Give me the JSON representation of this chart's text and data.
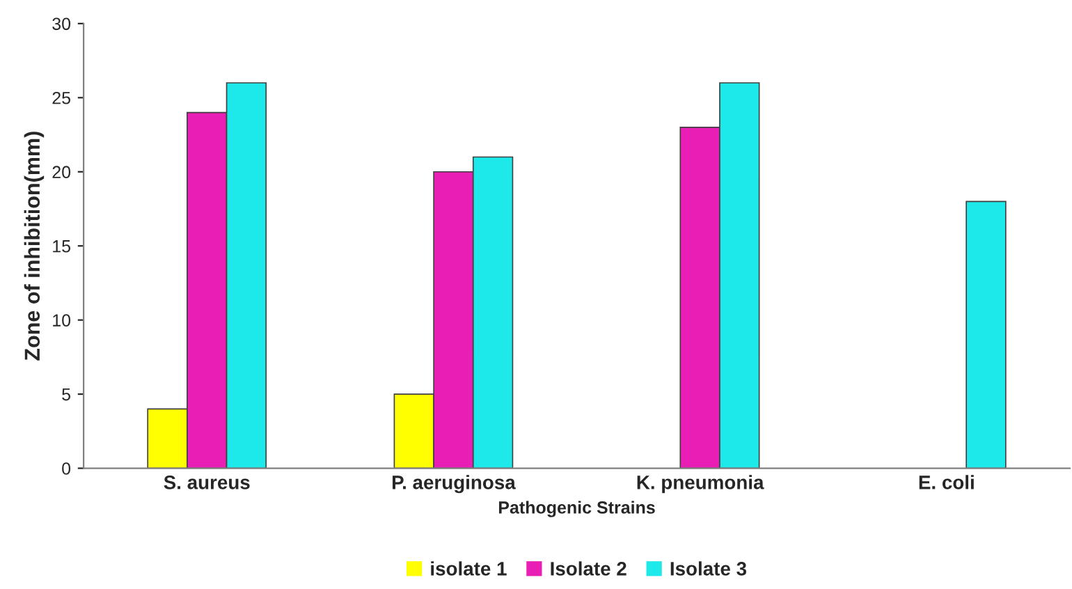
{
  "chart_data": {
    "type": "bar",
    "xlabel": "Pathogenic Strains",
    "ylabel": "Zone of inhibition(mm)",
    "categories": [
      "S. aureus",
      "P. aeruginosa",
      "K. pneumonia",
      "E. coli"
    ],
    "series": [
      {
        "name": "isolate 1",
        "color": "#ffff00",
        "values": [
          4,
          5,
          null,
          null
        ]
      },
      {
        "name": "Isolate 2",
        "color": "#e91eb4",
        "values": [
          24,
          20,
          23,
          null
        ]
      },
      {
        "name": "Isolate 3",
        "color": "#1de9ea",
        "values": [
          26,
          21,
          26,
          18
        ]
      }
    ],
    "ylim": [
      0,
      30
    ],
    "yticks": [
      0,
      5,
      10,
      15,
      20,
      25,
      30
    ],
    "grid": false,
    "legend": "bottom"
  }
}
